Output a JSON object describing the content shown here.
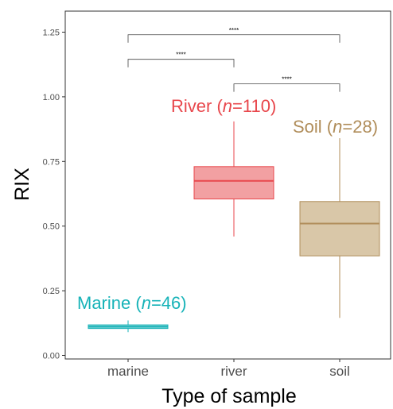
{
  "chart_data": {
    "type": "box",
    "xlabel": "Type of sample",
    "ylabel": "RIX",
    "ylim": [
      0,
      1.33
    ],
    "yticks": [
      0.0,
      0.25,
      0.5,
      0.75,
      1.0,
      1.25
    ],
    "ytick_labels": [
      "0.00",
      "0.25",
      "0.50",
      "0.75",
      "1.00",
      "1.25"
    ],
    "categories": [
      "marine",
      "river",
      "soil"
    ],
    "boxes": [
      {
        "category": "marine",
        "min": 0.09,
        "q1": 0.104,
        "median": 0.111,
        "q3": 0.118,
        "max": 0.135,
        "color": "#17b3b8",
        "fill": "#8fd6d8",
        "annotation": {
          "prefix": "Marine (",
          "n_label": "n",
          "suffix": "=46)"
        }
      },
      {
        "category": "river",
        "min": 0.46,
        "q1": 0.605,
        "median": 0.675,
        "q3": 0.73,
        "max": 0.905,
        "color": "#e8474c",
        "fill": "#f2a0a2",
        "annotation": {
          "prefix": "River (",
          "n_label": "n",
          "suffix": "=110)"
        }
      },
      {
        "category": "soil",
        "min": 0.145,
        "q1": 0.385,
        "median": 0.51,
        "q3": 0.595,
        "max": 0.84,
        "color": "#b08d5a",
        "fill": "#d9c7a8",
        "annotation": {
          "prefix": "Soil (",
          "n_label": "n",
          "suffix": "=28)"
        }
      }
    ],
    "significance": [
      {
        "from": "marine",
        "to": "soil",
        "y": 1.24,
        "label": "****"
      },
      {
        "from": "marine",
        "to": "river",
        "y": 1.145,
        "label": "****"
      },
      {
        "from": "river",
        "to": "soil",
        "y": 1.05,
        "label": "****"
      }
    ],
    "grid": false
  }
}
